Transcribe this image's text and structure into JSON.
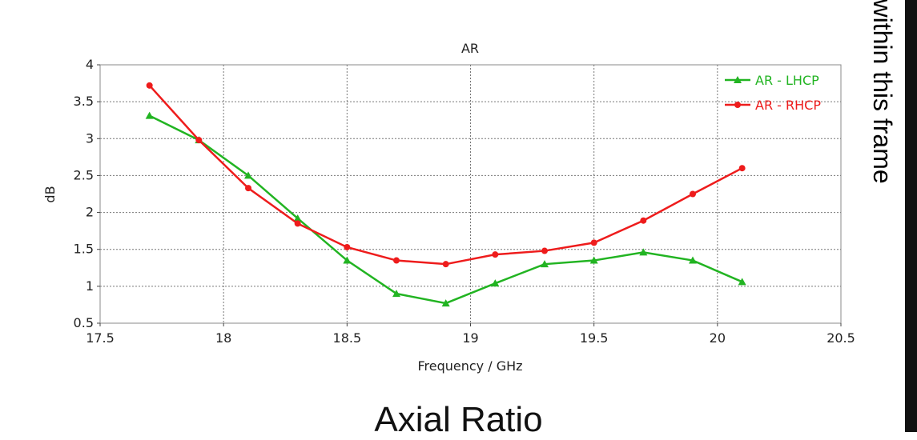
{
  "side_text": "ges within this frame",
  "caption": "Axial Ratio",
  "chart_data": {
    "type": "line",
    "title": "AR",
    "xlabel": "Frequency / GHz",
    "ylabel": "dB",
    "xlim": [
      17.5,
      20.5
    ],
    "ylim": [
      0.5,
      4
    ],
    "xticks": [
      17.5,
      18,
      18.5,
      19,
      19.5,
      20,
      20.5
    ],
    "xtick_labels": [
      "17.5",
      "18",
      "18.5",
      "19",
      "19.5",
      "20",
      "20.5"
    ],
    "yticks": [
      0.5,
      1,
      1.5,
      2,
      2.5,
      3,
      3.5,
      4
    ],
    "ytick_labels": [
      "0.5",
      "1",
      "1.5",
      "2",
      "2.5",
      "3",
      "3.5",
      "4"
    ],
    "grid": true,
    "legend_position": "top-right",
    "series": [
      {
        "name": "AR - LHCP",
        "color": "#22b422",
        "marker": "triangle",
        "x": [
          17.7,
          17.9,
          18.1,
          18.3,
          18.5,
          18.7,
          18.9,
          19.1,
          19.3,
          19.5,
          19.7,
          19.9,
          20.1
        ],
        "y": [
          3.31,
          2.98,
          2.5,
          1.92,
          1.35,
          0.9,
          0.77,
          1.04,
          1.3,
          1.35,
          1.46,
          1.35,
          1.06
        ]
      },
      {
        "name": "AR - RHCP",
        "color": "#ee1c1c",
        "marker": "circle",
        "x": [
          17.7,
          17.9,
          18.1,
          18.3,
          18.5,
          18.7,
          18.9,
          19.1,
          19.3,
          19.5,
          19.7,
          19.9,
          20.1
        ],
        "y": [
          3.72,
          2.98,
          2.33,
          1.85,
          1.53,
          1.35,
          1.3,
          1.43,
          1.48,
          1.59,
          1.89,
          2.25,
          2.6
        ]
      }
    ]
  }
}
